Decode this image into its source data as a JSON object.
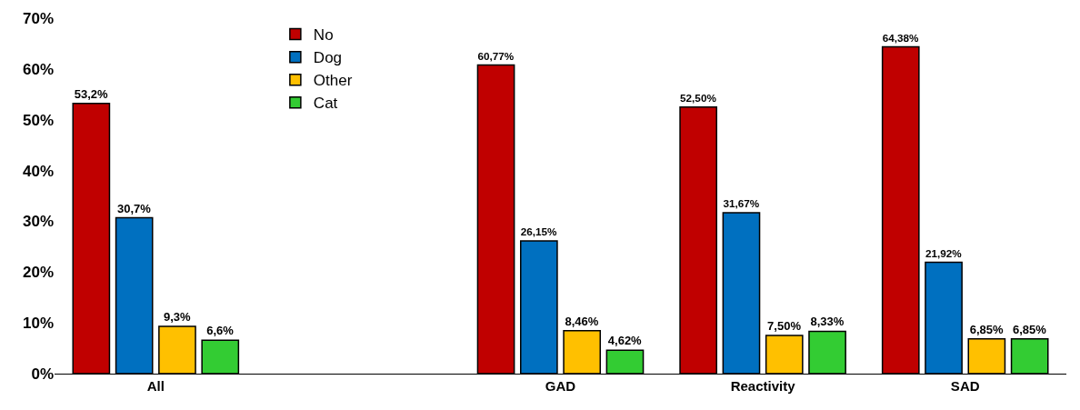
{
  "chart_data": {
    "type": "bar",
    "categories": [
      "All",
      null,
      "GAD",
      "Reactivity",
      "SAD"
    ],
    "series": [
      {
        "name": "No",
        "color": "#c00000",
        "values": [
          53.2,
          null,
          60.77,
          52.5,
          64.38
        ],
        "value_labels": [
          "53,2%",
          null,
          "60,77%",
          "52,50%",
          "64,38%"
        ]
      },
      {
        "name": "Dog",
        "color": "#0070c0",
        "values": [
          30.7,
          null,
          26.15,
          31.67,
          21.92
        ],
        "value_labels": [
          "30,7%",
          null,
          "26,15%",
          "31,67%",
          "21,92%"
        ]
      },
      {
        "name": "Other",
        "color": "#ffc000",
        "values": [
          9.3,
          null,
          8.46,
          7.5,
          6.85
        ],
        "value_labels": [
          "9,3%",
          null,
          "8,46%",
          "7,50%",
          "6,85%"
        ]
      },
      {
        "name": "Cat",
        "color": "#33cc33",
        "values": [
          6.6,
          null,
          4.62,
          8.33,
          6.85
        ],
        "value_labels": [
          "6,6%",
          null,
          "4,62%",
          "8,33%",
          "6,85%"
        ]
      }
    ],
    "ylim": [
      0,
      70
    ],
    "yticks": [
      {
        "value": 0,
        "label": "0%"
      },
      {
        "value": 10,
        "label": "10%"
      },
      {
        "value": 20,
        "label": "20%"
      },
      {
        "value": 30,
        "label": "30%"
      },
      {
        "value": 40,
        "label": "40%"
      },
      {
        "value": 50,
        "label": "50%"
      },
      {
        "value": 60,
        "label": "60%"
      },
      {
        "value": 70,
        "label": "70%"
      }
    ],
    "grid": false,
    "legend": "top left"
  }
}
